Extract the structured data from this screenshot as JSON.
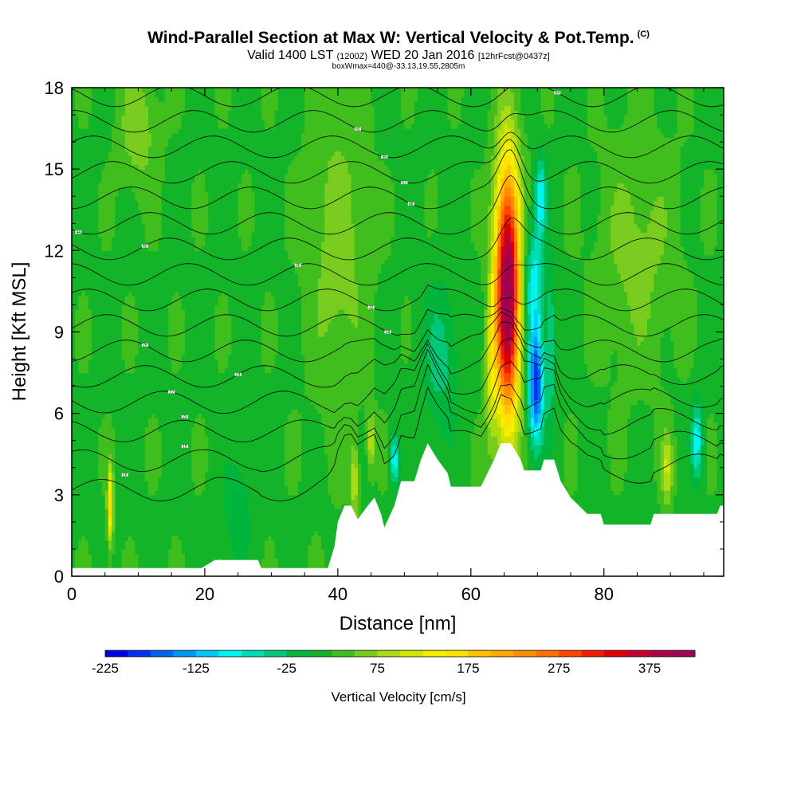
{
  "title": {
    "main": "Wind-Parallel Section at Max W: Vertical Velocity & Pot.Temp.",
    "main_suffix": "(C)",
    "valid_prefix": "Valid 1400 LST",
    "valid_zulu": "(1200Z)",
    "valid_date": "WED 20 Jan 2016",
    "forecast": "[12hrFcst@0437z]",
    "box_info": "boxWmax=440@-33.13,19.55,2805m"
  },
  "chart_data": {
    "type": "heatmap",
    "xlabel": "Distance [nm]",
    "ylabel": "Height [Kft MSL]",
    "xlim": [
      0,
      98
    ],
    "ylim": [
      0,
      18
    ],
    "x_ticks": [
      0,
      20,
      40,
      60,
      80
    ],
    "x_tick_labels": [
      "0",
      "20",
      "40",
      "60",
      "80"
    ],
    "y_ticks": [
      0,
      3,
      6,
      9,
      12,
      15,
      18
    ],
    "y_tick_labels": [
      "0",
      "3",
      "6",
      "9",
      "12",
      "15",
      "18"
    ],
    "background_velocity": 20,
    "velocity_features": [
      {
        "x": 65.5,
        "y": 10.5,
        "sx": 1.3,
        "sy": 3.3,
        "w": 420
      },
      {
        "x": 69.8,
        "y": 7.0,
        "sx": 0.8,
        "sy": 1.5,
        "w": -210
      },
      {
        "x": 69.5,
        "y": 10.8,
        "sx": 1.0,
        "sy": 1.5,
        "w": -110
      },
      {
        "x": 72.0,
        "y": 8.5,
        "sx": 0.5,
        "sy": 2.0,
        "w": -75
      },
      {
        "x": 70.5,
        "y": 14.0,
        "sx": 0.6,
        "sy": 1.0,
        "w": -110
      },
      {
        "x": 63.0,
        "y": 7.5,
        "sx": 0.6,
        "sy": 2.0,
        "w": 70
      },
      {
        "x": 55.5,
        "y": 8.0,
        "sx": 2.0,
        "sy": 2.0,
        "w": -55
      },
      {
        "x": 48.5,
        "y": 4.3,
        "sx": 0.5,
        "sy": 0.7,
        "w": -115
      },
      {
        "x": 45.0,
        "y": 5.0,
        "sx": 0.4,
        "sy": 0.7,
        "w": 80
      },
      {
        "x": 42.5,
        "y": 3.5,
        "sx": 0.4,
        "sy": 1.0,
        "w": 80
      },
      {
        "x": 5.8,
        "y": 2.6,
        "sx": 0.3,
        "sy": 1.0,
        "w": 150
      },
      {
        "x": 94.0,
        "y": 5.0,
        "sx": 0.6,
        "sy": 1.0,
        "w": -110
      },
      {
        "x": 89.5,
        "y": 4.0,
        "sx": 0.6,
        "sy": 0.9,
        "w": 80
      },
      {
        "x": 25.0,
        "y": 2.5,
        "sx": 1.5,
        "sy": 1.5,
        "w": -40
      },
      {
        "x": 10.0,
        "y": 16.5,
        "sx": 2.0,
        "sy": 1.5,
        "w": 50
      },
      {
        "x": 40.0,
        "y": 12.0,
        "sx": 3.0,
        "sy": 4.0,
        "w": 45
      },
      {
        "x": 85.0,
        "y": 12.0,
        "sx": 4.0,
        "sy": 3.0,
        "w": 40
      }
    ],
    "terrain": [
      [
        0,
        0.3
      ],
      [
        19.5,
        0.3
      ],
      [
        21.5,
        0.6
      ],
      [
        28,
        0.6
      ],
      [
        28.5,
        0.3
      ],
      [
        38.5,
        0.3
      ],
      [
        39.5,
        1.1
      ],
      [
        40,
        2.0
      ],
      [
        41,
        2.6
      ],
      [
        42,
        2.6
      ],
      [
        43,
        2.1
      ],
      [
        44.5,
        2.6
      ],
      [
        45.5,
        2.9
      ],
      [
        46.5,
        2.3
      ],
      [
        47,
        1.8
      ],
      [
        48.5,
        2.6
      ],
      [
        49.5,
        3.5
      ],
      [
        51.5,
        3.5
      ],
      [
        52.5,
        4.3
      ],
      [
        53.5,
        4.9
      ],
      [
        55,
        4.3
      ],
      [
        56.5,
        3.8
      ],
      [
        57,
        3.3
      ],
      [
        61.5,
        3.3
      ],
      [
        62.5,
        3.8
      ],
      [
        63.5,
        4.3
      ],
      [
        64.5,
        4.9
      ],
      [
        66,
        4.9
      ],
      [
        67.5,
        4.3
      ],
      [
        68,
        3.9
      ],
      [
        70.5,
        3.9
      ],
      [
        71,
        4.3
      ],
      [
        72.5,
        4.3
      ],
      [
        73.5,
        3.5
      ],
      [
        75,
        2.9
      ],
      [
        77.5,
        2.3
      ],
      [
        79.5,
        2.3
      ],
      [
        80,
        1.9
      ],
      [
        87,
        1.9
      ],
      [
        87.5,
        2.3
      ],
      [
        97,
        2.3
      ],
      [
        97.5,
        2.6
      ],
      [
        98,
        2.6
      ]
    ],
    "contour_levels": [
      16,
      18,
      20,
      22,
      24,
      26,
      28,
      32,
      36,
      40,
      44,
      48,
      52,
      56,
      60,
      64
    ],
    "contour_label_values": [
      "16",
      "18",
      "20",
      "22",
      "24",
      "26",
      "28",
      "32",
      "36",
      "40",
      "44",
      "48",
      "52",
      "56",
      "60",
      "64"
    ],
    "colorbar": {
      "label": "Vertical Velocity [cm/s]",
      "min": -225,
      "max": 425,
      "step": 25,
      "tick_values": [
        -225,
        -125,
        -25,
        75,
        175,
        275,
        375
      ],
      "tick_labels": [
        "-225",
        "-125",
        "-25",
        "75",
        "175",
        "275",
        "375"
      ],
      "colors": [
        "#0000e6",
        "#0030f0",
        "#0064f0",
        "#0096f5",
        "#00c8ff",
        "#00f5f0",
        "#00dcb4",
        "#00c878",
        "#00b43c",
        "#14b428",
        "#40be1e",
        "#78cc1e",
        "#aadc14",
        "#d4e600",
        "#f5f000",
        "#ffe100",
        "#ffc300",
        "#ffaa00",
        "#ff8c00",
        "#ff6e00",
        "#ff4600",
        "#f01e00",
        "#dc0000",
        "#c3002d",
        "#aa004b",
        "#a00050"
      ]
    }
  }
}
